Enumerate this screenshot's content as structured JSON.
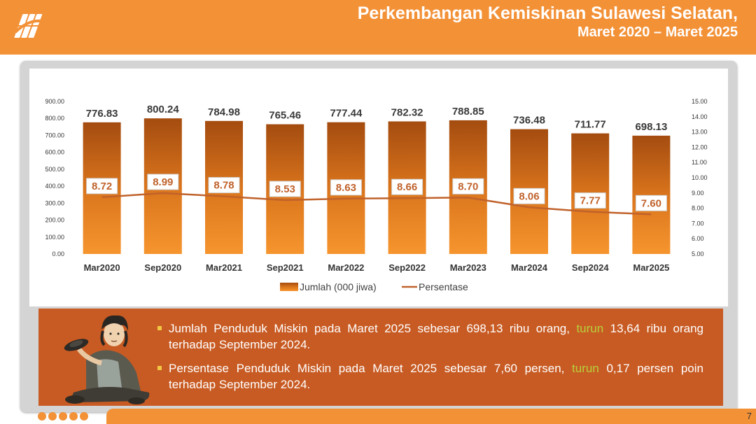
{
  "header": {
    "title_line1": "Perkembangan Kemiskinan Sulawesi Selatan,",
    "title_line2": "Maret 2020 –  Maret 2025",
    "color": "#f39137"
  },
  "chart_data": {
    "type": "bar",
    "categories": [
      "Mar2020",
      "Sep2020",
      "Mar2021",
      "Sep2021",
      "Mar2022",
      "Sep2022",
      "Mar2023",
      "Mar2024",
      "Sep2024",
      "Mar2025"
    ],
    "series": [
      {
        "name": "Jumlah (000 jiwa)",
        "kind": "bar",
        "axis": "left",
        "color": "#e07a1f",
        "values": [
          776.83,
          800.24,
          784.98,
          765.46,
          777.44,
          782.32,
          788.85,
          736.48,
          711.77,
          698.13
        ],
        "labels": [
          "776.83",
          "800.24",
          "784.98",
          "765.46",
          "777.44",
          "782.32",
          "788.85",
          "736.48",
          "711.77",
          "698.13"
        ]
      },
      {
        "name": "Persentase",
        "kind": "line",
        "axis": "right",
        "color": "#c0622b",
        "values": [
          8.72,
          8.99,
          8.78,
          8.53,
          8.63,
          8.66,
          8.7,
          8.06,
          7.77,
          7.6
        ],
        "labels": [
          "8.72",
          "8.99",
          "8.78",
          "8.53",
          "8.63",
          "8.66",
          "8.70",
          "8.06",
          "7.77",
          "7.60"
        ]
      }
    ],
    "ylim_left": [
      0,
      900
    ],
    "yticks_left": [
      "0.00",
      "100.00",
      "200.00",
      "300.00",
      "400.00",
      "500.00",
      "600.00",
      "700.00",
      "800.00",
      "900.00"
    ],
    "ylim_right": [
      5,
      15
    ],
    "yticks_right": [
      "5.00",
      "6.00",
      "7.00",
      "8.00",
      "9.00",
      "10.00",
      "11.00",
      "12.00",
      "13.00",
      "14.00",
      "15.00"
    ],
    "legend_position": "bottom-center"
  },
  "info": {
    "bullet1_pre": "Jumlah Penduduk Miskin pada Maret 2025 sebesar 698,13 ribu orang, ",
    "bullet1_hl": "turun",
    "bullet1_post": " 13,64 ribu orang terhadap September 2024.",
    "bullet2_pre": "Persentase Penduduk Miskin pada Maret 2025 sebesar 7,60 persen, ",
    "bullet2_hl": "turun",
    "bullet2_post": " 0,17 persen poin terhadap September 2024."
  },
  "footer": {
    "page_number": "7"
  }
}
